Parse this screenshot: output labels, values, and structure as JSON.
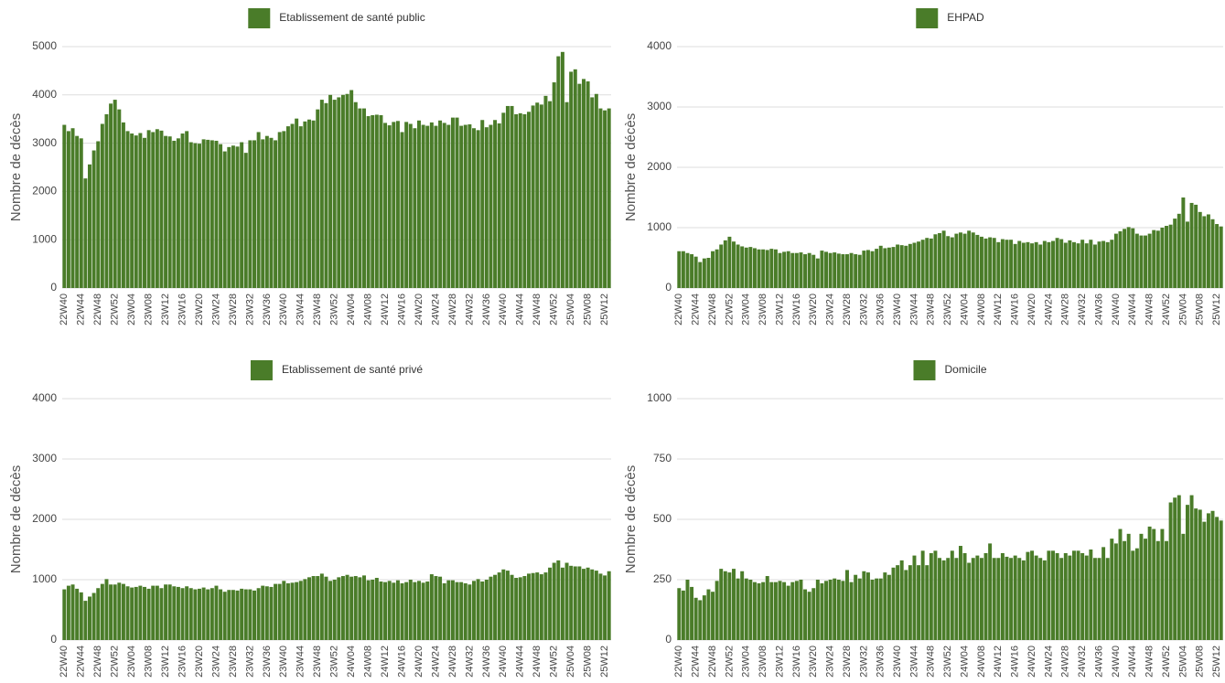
{
  "chart_data": [
    {
      "type": "bar",
      "ylabel": "Nombre de décès",
      "ylim": [
        0,
        5000
      ],
      "yticks": [
        0,
        1000,
        2000,
        3000,
        4000,
        5000
      ],
      "grid": true,
      "categories": [
        "22W40",
        null,
        null,
        null,
        "22W44",
        null,
        null,
        null,
        "22W48",
        null,
        null,
        null,
        "22W52",
        null,
        null,
        null,
        "23W04",
        null,
        null,
        null,
        "23W08",
        null,
        null,
        null,
        "23W12",
        null,
        null,
        null,
        "23W16",
        null,
        null,
        null,
        "23W20",
        null,
        null,
        null,
        "23W24",
        null,
        null,
        null,
        "23W28",
        null,
        null,
        null,
        "23W32",
        null,
        null,
        null,
        "23W36",
        null,
        null,
        null,
        "23W40",
        null,
        null,
        null,
        "23W44",
        null,
        null,
        null,
        "23W48",
        null,
        null,
        null,
        "23W52",
        null,
        null,
        null,
        "24W04",
        null,
        null,
        null,
        "24W08",
        null,
        null,
        null,
        "24W12",
        null,
        null,
        null,
        "24W16",
        null,
        null,
        null,
        "24W20",
        null,
        null,
        null,
        "24W24",
        null,
        null,
        null,
        "24W28",
        null,
        null,
        null,
        "24W32",
        null,
        null,
        null,
        "24W36",
        null,
        null,
        null,
        "24W40",
        null,
        null,
        null,
        "24W44",
        null,
        null,
        null,
        "24W48",
        null,
        null,
        null,
        "24W52",
        null,
        null,
        null,
        "25W04",
        null,
        null,
        null,
        "25W08",
        null,
        null,
        null,
        "25W12",
        null
      ],
      "series": [
        {
          "name": "Etablissement de santé public",
          "color": "#4a7c29",
          "values": [
            3380,
            3250,
            3310,
            3150,
            3100,
            2270,
            2560,
            2850,
            3040,
            3400,
            3600,
            3820,
            3900,
            3700,
            3430,
            3250,
            3200,
            3160,
            3210,
            3110,
            3270,
            3230,
            3290,
            3260,
            3150,
            3140,
            3050,
            3100,
            3200,
            3250,
            3020,
            3000,
            2990,
            3080,
            3070,
            3060,
            3050,
            2980,
            2830,
            2920,
            2950,
            2930,
            3020,
            2800,
            3060,
            3060,
            3230,
            3080,
            3150,
            3110,
            3060,
            3230,
            3250,
            3350,
            3400,
            3510,
            3350,
            3450,
            3490,
            3470,
            3700,
            3900,
            3830,
            4000,
            3900,
            3950,
            4000,
            4020,
            4100,
            3850,
            3720,
            3720,
            3560,
            3580,
            3590,
            3580,
            3420,
            3370,
            3440,
            3460,
            3230,
            3440,
            3400,
            3310,
            3470,
            3380,
            3360,
            3430,
            3360,
            3470,
            3420,
            3380,
            3530,
            3530,
            3360,
            3380,
            3390,
            3310,
            3270,
            3480,
            3330,
            3380,
            3480,
            3410,
            3630,
            3770,
            3770,
            3600,
            3620,
            3600,
            3650,
            3780,
            3840,
            3800,
            3980,
            3870,
            4260,
            4800,
            4890,
            3850,
            4480,
            4530,
            4230,
            4330,
            4280,
            3950,
            4020,
            3720,
            3680,
            3720
          ]
        }
      ]
    },
    {
      "type": "bar",
      "ylabel": "Nombre de décès",
      "ylim": [
        0,
        4000
      ],
      "yticks": [
        0,
        1000,
        2000,
        3000,
        4000
      ],
      "grid": true,
      "categories": [
        "22W40",
        null,
        null,
        null,
        "22W44",
        null,
        null,
        null,
        "22W48",
        null,
        null,
        null,
        "22W52",
        null,
        null,
        null,
        "23W04",
        null,
        null,
        null,
        "23W08",
        null,
        null,
        null,
        "23W12",
        null,
        null,
        null,
        "23W16",
        null,
        null,
        null,
        "23W20",
        null,
        null,
        null,
        "23W24",
        null,
        null,
        null,
        "23W28",
        null,
        null,
        null,
        "23W32",
        null,
        null,
        null,
        "23W36",
        null,
        null,
        null,
        "23W40",
        null,
        null,
        null,
        "23W44",
        null,
        null,
        null,
        "23W48",
        null,
        null,
        null,
        "23W52",
        null,
        null,
        null,
        "24W04",
        null,
        null,
        null,
        "24W08",
        null,
        null,
        null,
        "24W12",
        null,
        null,
        null,
        "24W16",
        null,
        null,
        null,
        "24W20",
        null,
        null,
        null,
        "24W24",
        null,
        null,
        null,
        "24W28",
        null,
        null,
        null,
        "24W32",
        null,
        null,
        null,
        "24W36",
        null,
        null,
        null,
        "24W40",
        null,
        null,
        null,
        "24W44",
        null,
        null,
        null,
        "24W48",
        null,
        null,
        null,
        "24W52",
        null,
        null,
        null,
        "25W04",
        null,
        null,
        null,
        "25W08",
        null,
        null,
        null,
        "25W12",
        null
      ],
      "series": [
        {
          "name": "EHPAD",
          "color": "#4a7c29",
          "values": [
            610,
            610,
            580,
            560,
            520,
            430,
            490,
            500,
            610,
            640,
            720,
            790,
            850,
            770,
            720,
            690,
            670,
            680,
            660,
            640,
            640,
            630,
            650,
            640,
            580,
            600,
            610,
            580,
            580,
            590,
            560,
            580,
            550,
            490,
            620,
            600,
            580,
            590,
            570,
            560,
            560,
            580,
            560,
            550,
            620,
            630,
            610,
            650,
            700,
            660,
            670,
            680,
            720,
            710,
            700,
            730,
            750,
            770,
            800,
            830,
            820,
            890,
            910,
            950,
            860,
            840,
            900,
            920,
            900,
            950,
            920,
            880,
            850,
            820,
            840,
            830,
            760,
            810,
            800,
            800,
            730,
            780,
            750,
            760,
            740,
            760,
            720,
            780,
            760,
            780,
            830,
            810,
            750,
            790,
            760,
            740,
            800,
            740,
            800,
            720,
            770,
            780,
            760,
            800,
            900,
            940,
            980,
            1010,
            990,
            900,
            870,
            870,
            900,
            960,
            950,
            1000,
            1030,
            1050,
            1150,
            1230,
            1500,
            1100,
            1410,
            1380,
            1260,
            1190,
            1220,
            1140,
            1060,
            1020
          ]
        }
      ]
    },
    {
      "type": "bar",
      "ylabel": "Nombre de décès",
      "ylim": [
        0,
        4000
      ],
      "yticks": [
        0,
        1000,
        2000,
        3000,
        4000
      ],
      "grid": true,
      "categories": [
        "22W40",
        null,
        null,
        null,
        "22W44",
        null,
        null,
        null,
        "22W48",
        null,
        null,
        null,
        "22W52",
        null,
        null,
        null,
        "23W04",
        null,
        null,
        null,
        "23W08",
        null,
        null,
        null,
        "23W12",
        null,
        null,
        null,
        "23W16",
        null,
        null,
        null,
        "23W20",
        null,
        null,
        null,
        "23W24",
        null,
        null,
        null,
        "23W28",
        null,
        null,
        null,
        "23W32",
        null,
        null,
        null,
        "23W36",
        null,
        null,
        null,
        "23W40",
        null,
        null,
        null,
        "23W44",
        null,
        null,
        null,
        "23W48",
        null,
        null,
        null,
        "23W52",
        null,
        null,
        null,
        "24W04",
        null,
        null,
        null,
        "24W08",
        null,
        null,
        null,
        "24W12",
        null,
        null,
        null,
        "24W16",
        null,
        null,
        null,
        "24W20",
        null,
        null,
        null,
        "24W24",
        null,
        null,
        null,
        "24W28",
        null,
        null,
        null,
        "24W32",
        null,
        null,
        null,
        "24W36",
        null,
        null,
        null,
        "24W40",
        null,
        null,
        null,
        "24W44",
        null,
        null,
        null,
        "24W48",
        null,
        null,
        null,
        "24W52",
        null,
        null,
        null,
        "25W04",
        null,
        null,
        null,
        "25W08",
        null,
        null,
        null,
        "25W12",
        null
      ],
      "series": [
        {
          "name": "Etablissement de santé privé",
          "color": "#4a7c29",
          "values": [
            840,
            900,
            920,
            850,
            790,
            650,
            720,
            780,
            860,
            930,
            1010,
            920,
            920,
            950,
            930,
            890,
            870,
            880,
            900,
            880,
            850,
            900,
            900,
            860,
            920,
            920,
            890,
            880,
            860,
            890,
            860,
            840,
            850,
            870,
            840,
            860,
            900,
            840,
            800,
            830,
            830,
            820,
            850,
            840,
            840,
            820,
            860,
            900,
            890,
            880,
            930,
            930,
            980,
            940,
            950,
            960,
            980,
            1010,
            1040,
            1060,
            1060,
            1100,
            1050,
            980,
            1000,
            1040,
            1060,
            1080,
            1050,
            1060,
            1040,
            1070,
            990,
            1000,
            1030,
            970,
            960,
            980,
            950,
            990,
            940,
            960,
            1000,
            960,
            980,
            950,
            970,
            1090,
            1060,
            1050,
            940,
            990,
            990,
            960,
            960,
            940,
            920,
            980,
            1010,
            970,
            1000,
            1050,
            1080,
            1120,
            1170,
            1150,
            1080,
            1030,
            1040,
            1060,
            1100,
            1110,
            1120,
            1090,
            1120,
            1200,
            1280,
            1320,
            1200,
            1280,
            1230,
            1220,
            1220,
            1180,
            1200,
            1170,
            1150,
            1100,
            1070,
            1140
          ]
        }
      ]
    },
    {
      "type": "bar",
      "ylabel": "Nombre de décès",
      "ylim": [
        0,
        1000
      ],
      "yticks": [
        0,
        250,
        500,
        750,
        1000
      ],
      "grid": true,
      "categories": [
        "22W40",
        null,
        null,
        null,
        "22W44",
        null,
        null,
        null,
        "22W48",
        null,
        null,
        null,
        "22W52",
        null,
        null,
        null,
        "23W04",
        null,
        null,
        null,
        "23W08",
        null,
        null,
        null,
        "23W12",
        null,
        null,
        null,
        "23W16",
        null,
        null,
        null,
        "23W20",
        null,
        null,
        null,
        "23W24",
        null,
        null,
        null,
        "23W28",
        null,
        null,
        null,
        "23W32",
        null,
        null,
        null,
        "23W36",
        null,
        null,
        null,
        "23W40",
        null,
        null,
        null,
        "23W44",
        null,
        null,
        null,
        "23W48",
        null,
        null,
        null,
        "23W52",
        null,
        null,
        null,
        "24W04",
        null,
        null,
        null,
        "24W08",
        null,
        null,
        null,
        "24W12",
        null,
        null,
        null,
        "24W16",
        null,
        null,
        null,
        "24W20",
        null,
        null,
        null,
        "24W24",
        null,
        null,
        null,
        "24W28",
        null,
        null,
        null,
        "24W32",
        null,
        null,
        null,
        "24W36",
        null,
        null,
        null,
        "24W40",
        null,
        null,
        null,
        "24W44",
        null,
        null,
        null,
        "24W48",
        null,
        null,
        null,
        "24W52",
        null,
        null,
        null,
        "25W04",
        null,
        null,
        null,
        "25W08",
        null,
        null,
        null,
        "25W12",
        null
      ],
      "series": [
        {
          "name": "Domicile",
          "color": "#4a7c29",
          "values": [
            215,
            205,
            250,
            220,
            175,
            165,
            185,
            210,
            200,
            245,
            295,
            285,
            280,
            295,
            255,
            285,
            255,
            250,
            240,
            235,
            240,
            265,
            240,
            240,
            245,
            240,
            225,
            240,
            245,
            250,
            210,
            200,
            215,
            250,
            235,
            245,
            250,
            255,
            250,
            245,
            290,
            240,
            270,
            255,
            285,
            280,
            250,
            255,
            255,
            280,
            270,
            300,
            310,
            330,
            290,
            310,
            350,
            310,
            370,
            310,
            360,
            370,
            340,
            330,
            340,
            370,
            340,
            390,
            360,
            320,
            340,
            350,
            340,
            360,
            400,
            340,
            340,
            360,
            345,
            340,
            350,
            340,
            330,
            365,
            370,
            350,
            340,
            330,
            370,
            370,
            360,
            340,
            360,
            350,
            370,
            370,
            360,
            350,
            375,
            340,
            340,
            385,
            340,
            420,
            400,
            460,
            410,
            440,
            370,
            380,
            440,
            420,
            470,
            460,
            410,
            460,
            410,
            570,
            590,
            600,
            440,
            560,
            600,
            545,
            540,
            490,
            525,
            535,
            510,
            495
          ]
        }
      ]
    }
  ]
}
